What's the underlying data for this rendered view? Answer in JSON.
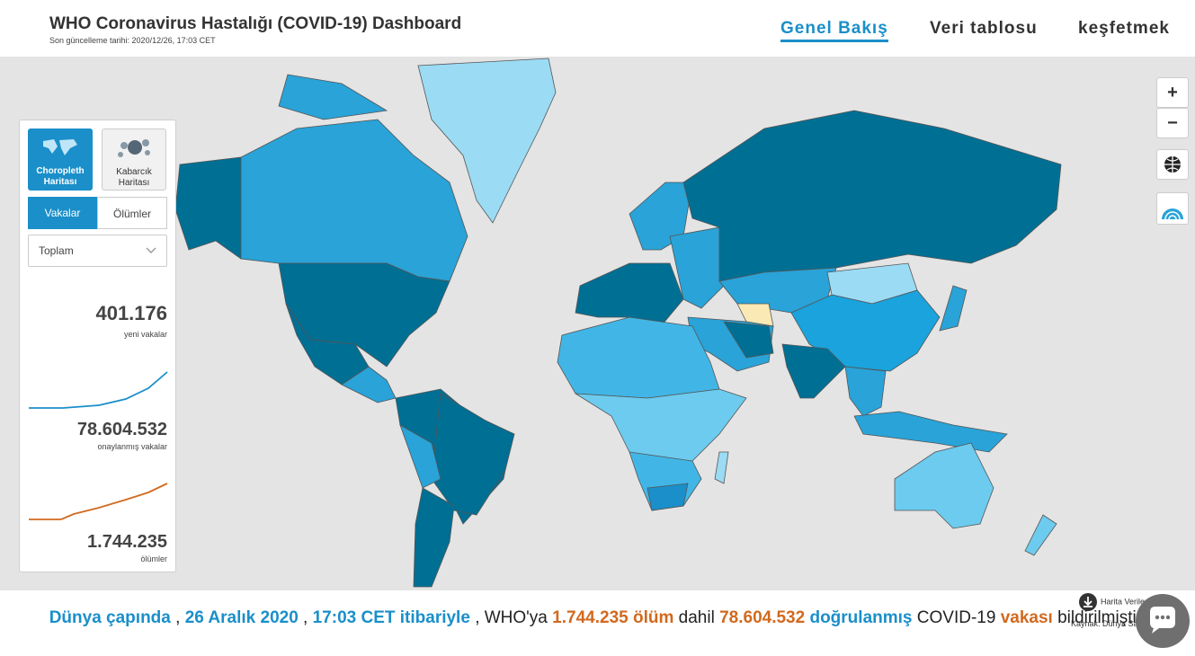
{
  "header": {
    "title": "WHO Coronavirus Hastalığı (COVID-19) Dashboard",
    "updated": "Son güncelleme tarihi: 2020/12/26, 17:03 CET"
  },
  "nav": [
    "Genel Bakış",
    "Veri tablosu",
    "keşfetmek"
  ],
  "panel": {
    "map_types": [
      "Choropleth Haritası",
      "Kabarcık Haritası"
    ],
    "tabs": [
      "Vakalar",
      "Ölümler"
    ],
    "dropdown": "Toplam",
    "stats": [
      {
        "value": "401.176",
        "label": "yeni vakalar"
      },
      {
        "value": "78.604.532",
        "label": "onaylanmış vakalar"
      },
      {
        "value": "1.744.235",
        "label": "ölümler"
      }
    ]
  },
  "map_controls": {
    "zoom_in": "+",
    "zoom_out": "−"
  },
  "map_footer": {
    "download": "Harita Verilerini İndirin",
    "source": "Kaynak: Dünya Sağlık Örgütü"
  },
  "summary": [
    "Dünya çapında",
    ",",
    "26 Aralık 2020",
    ",",
    "17:03 CET itibariyle",
    ",",
    "WHO'ya",
    "1.744.235 ölüm",
    "dahil",
    "78.604.532",
    "doğrulanmış",
    "COVID-19",
    "vakası",
    "bildirilmiştir."
  ]
}
